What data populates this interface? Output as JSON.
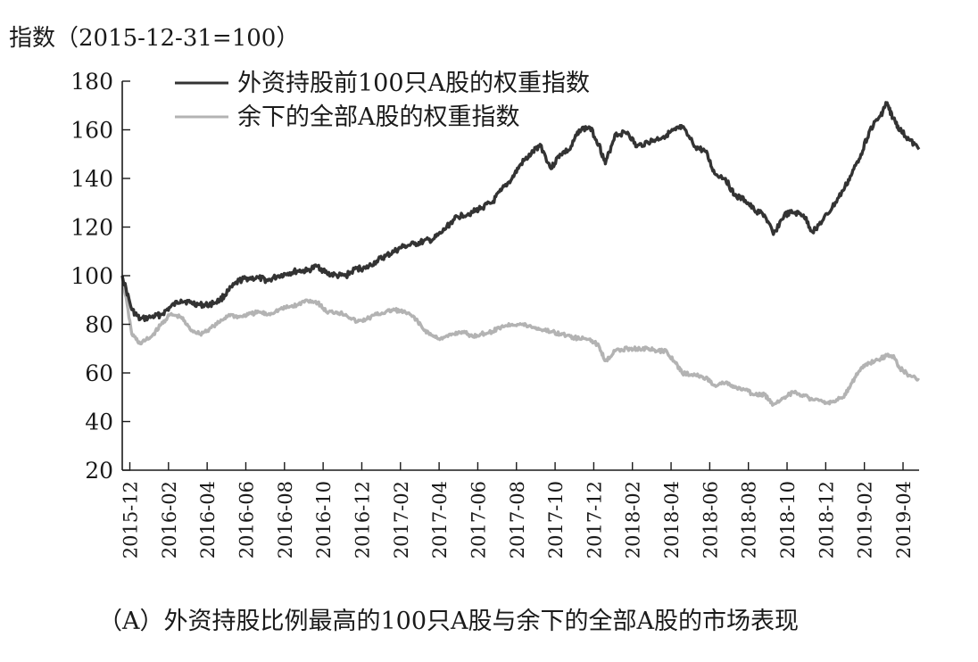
{
  "chart_data": {
    "type": "line",
    "ylabel": "指数（2015-12-31=100）",
    "caption": "（A）外资持股比例最高的100只A股与余下的全部A股的市场表现",
    "ylim": [
      20,
      180
    ],
    "yticks": [
      20,
      40,
      60,
      80,
      100,
      120,
      140,
      160,
      180
    ],
    "xlim": [
      "2015-12-31",
      "2019-05-31"
    ],
    "x_tick_labels": [
      "2015-12",
      "2016-02",
      "2016-04",
      "2016-06",
      "2016-08",
      "2016-10",
      "2016-12",
      "2017-02",
      "2017-04",
      "2017-06",
      "2017-08",
      "2017-10",
      "2017-12",
      "2018-02",
      "2018-04",
      "2018-06",
      "2018-08",
      "2018-10",
      "2018-12",
      "2019-02",
      "2019-04"
    ],
    "grid": false,
    "legend_position": "top-left",
    "series": [
      {
        "name": "外资持股前100只A股的权重指数",
        "color": "#333333",
        "x": [
          "2015-12-31",
          "2016-01-15",
          "2016-01-28",
          "2016-02-15",
          "2016-03-01",
          "2016-03-15",
          "2016-04-01",
          "2016-04-15",
          "2016-05-01",
          "2016-05-15",
          "2016-06-01",
          "2016-06-15",
          "2016-07-01",
          "2016-07-15",
          "2016-08-01",
          "2016-08-15",
          "2016-09-01",
          "2016-09-15",
          "2016-10-01",
          "2016-10-15",
          "2016-11-01",
          "2016-11-15",
          "2016-12-01",
          "2016-12-15",
          "2017-01-01",
          "2017-01-15",
          "2017-02-01",
          "2017-02-15",
          "2017-03-01",
          "2017-03-15",
          "2017-04-01",
          "2017-04-15",
          "2017-05-01",
          "2017-05-15",
          "2017-06-01",
          "2017-06-15",
          "2017-07-01",
          "2017-07-15",
          "2017-08-01",
          "2017-08-15",
          "2017-09-01",
          "2017-09-15",
          "2017-10-01",
          "2017-10-15",
          "2017-11-01",
          "2017-11-15",
          "2017-12-01",
          "2017-12-15",
          "2018-01-01",
          "2018-01-15",
          "2018-01-25",
          "2018-02-09",
          "2018-03-01",
          "2018-03-15",
          "2018-04-01",
          "2018-04-15",
          "2018-05-01",
          "2018-05-15",
          "2018-05-25",
          "2018-06-15",
          "2018-07-01",
          "2018-07-15",
          "2018-08-01",
          "2018-08-15",
          "2018-09-01",
          "2018-09-15",
          "2018-10-01",
          "2018-10-15",
          "2018-11-01",
          "2018-11-15",
          "2018-12-01",
          "2018-12-15",
          "2019-01-01",
          "2019-01-15",
          "2019-02-01",
          "2019-02-15",
          "2019-03-01",
          "2019-03-15",
          "2019-04-01",
          "2019-04-10",
          "2019-04-20",
          "2019-05-01",
          "2019-05-15",
          "2019-05-31"
        ],
        "values": [
          100,
          86,
          82,
          83,
          84,
          87,
          90,
          89,
          88,
          88,
          90,
          94,
          98,
          99,
          99,
          98,
          100,
          101,
          102,
          102,
          104,
          101,
          100,
          100,
          103,
          103,
          106,
          108,
          110,
          112,
          113,
          114,
          115,
          118,
          123,
          125,
          126,
          128,
          130,
          135,
          140,
          146,
          150,
          154,
          144,
          150,
          152,
          160,
          161,
          154,
          146,
          158,
          159,
          153,
          155,
          156,
          158,
          160,
          161,
          153,
          151,
          142,
          140,
          133,
          131,
          127,
          125,
          117,
          125,
          126,
          125,
          118,
          123,
          128,
          135,
          142,
          150,
          160,
          166,
          171,
          165,
          160,
          156,
          152
        ]
      },
      {
        "name": "余下的全部A股的权重指数",
        "color": "#b3b3b3",
        "x": [
          "2015-12-31",
          "2016-01-15",
          "2016-01-28",
          "2016-02-15",
          "2016-03-01",
          "2016-03-15",
          "2016-04-01",
          "2016-04-15",
          "2016-05-01",
          "2016-05-15",
          "2016-06-01",
          "2016-06-15",
          "2016-07-01",
          "2016-07-15",
          "2016-08-01",
          "2016-08-15",
          "2016-09-01",
          "2016-09-15",
          "2016-10-01",
          "2016-10-15",
          "2016-11-01",
          "2016-11-15",
          "2016-12-01",
          "2016-12-15",
          "2017-01-01",
          "2017-01-15",
          "2017-02-01",
          "2017-02-15",
          "2017-03-01",
          "2017-03-15",
          "2017-04-01",
          "2017-04-15",
          "2017-05-01",
          "2017-05-15",
          "2017-06-01",
          "2017-06-15",
          "2017-07-01",
          "2017-07-15",
          "2017-08-01",
          "2017-08-15",
          "2017-09-01",
          "2017-09-15",
          "2017-10-01",
          "2017-10-15",
          "2017-11-01",
          "2017-11-15",
          "2017-12-01",
          "2017-12-15",
          "2018-01-01",
          "2018-01-15",
          "2018-01-25",
          "2018-02-09",
          "2018-03-01",
          "2018-03-15",
          "2018-04-01",
          "2018-04-15",
          "2018-05-01",
          "2018-05-15",
          "2018-05-25",
          "2018-06-15",
          "2018-07-01",
          "2018-07-15",
          "2018-08-01",
          "2018-08-15",
          "2018-09-01",
          "2018-09-15",
          "2018-10-01",
          "2018-10-15",
          "2018-11-01",
          "2018-11-15",
          "2018-12-01",
          "2018-12-15",
          "2019-01-01",
          "2019-01-15",
          "2019-02-01",
          "2019-02-15",
          "2019-03-01",
          "2019-03-15",
          "2019-04-01",
          "2019-04-10",
          "2019-04-20",
          "2019-05-01",
          "2019-05-15",
          "2019-05-31"
        ],
        "values": [
          100,
          76,
          72,
          75,
          80,
          84,
          83,
          78,
          76,
          78,
          81,
          84,
          83,
          84,
          85,
          84,
          86,
          87,
          88,
          90,
          89,
          85,
          85,
          84,
          81,
          82,
          84,
          85,
          86,
          85,
          83,
          78,
          75,
          74,
          76,
          77,
          75,
          76,
          77,
          79,
          80,
          80,
          79,
          78,
          77,
          76,
          75,
          74,
          74,
          71,
          65,
          69,
          70,
          70,
          70,
          69,
          69,
          64,
          60,
          59,
          58,
          55,
          56,
          54,
          53,
          51,
          51,
          47,
          50,
          52,
          51,
          49,
          48,
          48,
          50,
          56,
          62,
          64,
          66,
          67,
          67,
          62,
          59,
          57
        ]
      }
    ]
  }
}
